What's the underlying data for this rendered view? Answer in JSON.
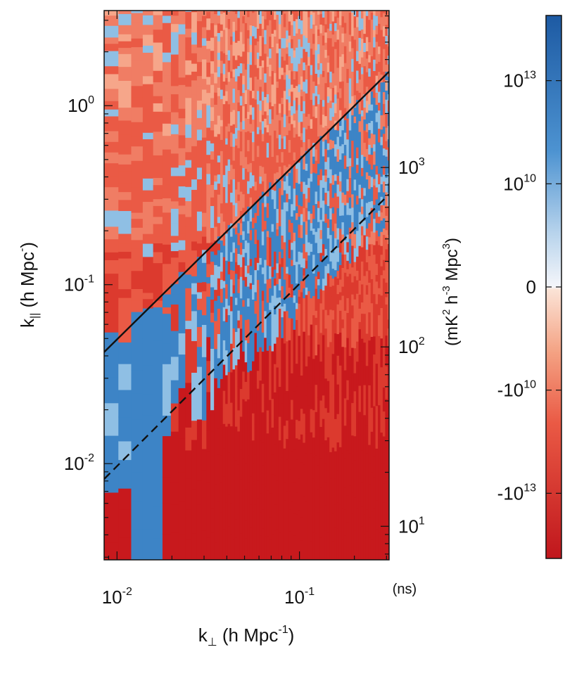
{
  "chart_data": {
    "type": "heatmap",
    "x_scale": "log",
    "y_scale": "log",
    "x_range": [
      0.0085,
      0.31
    ],
    "y_range": [
      0.0029,
      3.4
    ],
    "right_axis_range": [
      6.5,
      7500
    ],
    "x_axis": {
      "label_parts": [
        "k",
        "⊥",
        " (h Mpc",
        "-1",
        ")"
      ],
      "ticks": [
        {
          "value": 0.01,
          "base": "10",
          "exp": "-2"
        },
        {
          "value": 0.1,
          "base": "10",
          "exp": "-1"
        }
      ],
      "unit_label": "(ns)"
    },
    "y_axis": {
      "label_parts": [
        "k",
        "||",
        " (h Mpc",
        "-",
        ")"
      ],
      "ticks": [
        {
          "value": 1,
          "base": "10",
          "exp": "0"
        },
        {
          "value": 0.1,
          "base": "10",
          "exp": "-1"
        },
        {
          "value": 0.01,
          "base": "10",
          "exp": "-2"
        }
      ]
    },
    "right_axis": {
      "label_parts": [
        "(mK",
        "2",
        " h",
        "-3",
        " Mpc",
        "3",
        ")"
      ],
      "ticks": [
        {
          "value": 1000,
          "base": "10",
          "exp": "3"
        },
        {
          "value": 100,
          "base": "10",
          "exp": "2"
        },
        {
          "value": 10,
          "base": "10",
          "exp": "1"
        }
      ]
    },
    "colorbar": {
      "ticks": [
        {
          "base": "10",
          "exp": "13",
          "pos": 0.12
        },
        {
          "base": "10",
          "exp": "10",
          "pos": 0.31
        },
        {
          "base": "0",
          "exp": "",
          "pos": 0.5
        },
        {
          "base": "-10",
          "exp": "10",
          "pos": 0.69
        },
        {
          "base": "-10",
          "exp": "13",
          "pos": 0.88
        }
      ],
      "stops": [
        {
          "pos": 0.0,
          "color": "#1d5aa3"
        },
        {
          "pos": 0.25,
          "color": "#4d93d1"
        },
        {
          "pos": 0.4,
          "color": "#b7d3ec"
        },
        {
          "pos": 0.5,
          "color": "#f5f6fa"
        },
        {
          "pos": 0.505,
          "color": "#fbe3d6"
        },
        {
          "pos": 0.62,
          "color": "#f4a283"
        },
        {
          "pos": 0.75,
          "color": "#ea5a45"
        },
        {
          "pos": 1.0,
          "color": "#c0161c"
        }
      ]
    },
    "lines": [
      {
        "name": "solid",
        "style": "solid",
        "points": [
          [
            0.0085,
            0.042
          ],
          [
            0.31,
            1.55
          ]
        ]
      },
      {
        "name": "dashed",
        "style": "dashed",
        "points": [
          [
            0.0085,
            0.0082
          ],
          [
            0.31,
            0.32
          ]
        ]
      }
    ],
    "colors": {
      "deep_red": "#c8191d",
      "red": "#dc3a2e",
      "mid_red": "#ea5a45",
      "salmon": "#f07d64",
      "light_salmon": "#f6a68a",
      "blue": "#3d84c6",
      "light_blue": "#8fbfe4",
      "axis": "#111111"
    }
  }
}
